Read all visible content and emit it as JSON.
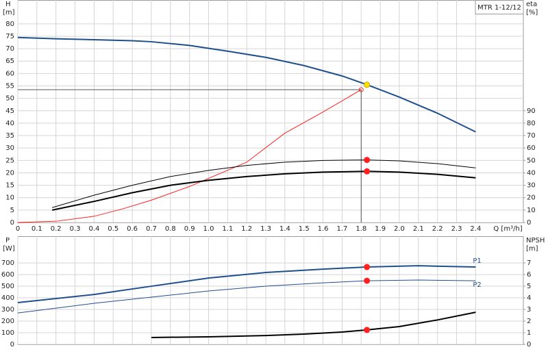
{
  "chart_data": [
    {
      "type": "line",
      "legend_title": "MTR 1-12/12",
      "y_label": "H",
      "y_unit": "[m]",
      "y2_label": "eta",
      "y2_unit": "[%]",
      "x_label": "Q [m³/h]",
      "xlim": [
        0,
        2.65
      ],
      "ylim": [
        0,
        89.6
      ],
      "y2lim": [
        0,
        179.2
      ],
      "grid": true,
      "xticks": [
        0,
        0.1,
        0.2,
        0.3,
        0.4,
        0.5,
        0.6,
        0.7,
        0.8,
        0.9,
        {
          "value": 1,
          "label": "1.0"
        },
        1.1,
        1.2,
        1.3,
        1.4,
        1.5,
        1.6,
        1.7,
        1.8,
        1.9,
        {
          "value": 2,
          "label": "2.0"
        },
        2.1,
        2.2,
        2.3,
        2.4
      ],
      "yticks": [
        0,
        5,
        10,
        15,
        20,
        25,
        30,
        35,
        40,
        45,
        50,
        55,
        60,
        65,
        70,
        75,
        80
      ],
      "y2ticks": [
        0,
        10,
        20,
        30,
        40,
        50,
        60,
        70,
        80,
        90
      ],
      "series": [
        {
          "color": "#1f4e8c",
          "width": 2,
          "x": [
            0,
            0.2,
            0.4,
            0.6,
            0.7,
            0.9,
            1.1,
            1.3,
            1.5,
            1.7,
            1.83,
            2.0,
            2.2,
            2.4
          ],
          "values": [
            74.5,
            74,
            73.6,
            73.2,
            72.8,
            71.3,
            69,
            66.5,
            63.2,
            59,
            55.5,
            50.5,
            44,
            36.5
          ]
        },
        {
          "color": "#ff2020",
          "width": 1,
          "axis": "y2",
          "x": [
            0,
            0.2,
            0.4,
            0.55,
            0.7,
            0.9,
            1.2,
            1.4,
            1.6,
            1.8
          ],
          "values": [
            0,
            1,
            5,
            11,
            18,
            29,
            48.6,
            72,
            89,
            107
          ]
        },
        {
          "color": "#000000",
          "width": 1,
          "axis": "y2",
          "x": [
            0.18,
            0.4,
            0.6,
            0.8,
            1.0,
            1.2,
            1.4,
            1.6,
            1.83,
            2.0,
            2.2,
            2.4
          ],
          "values": [
            12,
            22,
            30,
            37,
            42,
            46,
            48.6,
            50,
            50.4,
            49.6,
            47.4,
            44
          ]
        },
        {
          "color": "#000000",
          "width": 2,
          "axis": "y2",
          "x": [
            0.18,
            0.4,
            0.6,
            0.8,
            1.0,
            1.2,
            1.4,
            1.6,
            1.83,
            2.0,
            2.2,
            2.4
          ],
          "values": [
            10,
            17,
            24,
            30,
            34,
            37,
            39.2,
            40.6,
            41.2,
            40.6,
            38.8,
            36
          ]
        }
      ],
      "duty_lines": {
        "x": 1.8,
        "y": 53.5
      },
      "markers": [
        {
          "x": 1.8,
          "y": 53.5,
          "color": "#ff2020",
          "hollow": true
        },
        {
          "x": 1.83,
          "y": 55.5,
          "color": "#ffe000"
        },
        {
          "x": 1.83,
          "y": 50.4,
          "color": "#ff2020",
          "axis": "y2"
        },
        {
          "x": 1.83,
          "y": 41.2,
          "color": "#ff2020",
          "axis": "y2"
        }
      ]
    },
    {
      "type": "line",
      "y_label": "P",
      "y_unit": "[W]",
      "y2_label": "NPSH",
      "y2_unit": "[m]",
      "xlim": [
        0,
        2.65
      ],
      "ylim": [
        0,
        930
      ],
      "y2lim": [
        0,
        9.3
      ],
      "grid": true,
      "xticks": [
        0,
        0.1,
        0.2,
        0.3,
        0.4,
        0.5,
        0.6,
        0.7,
        0.8,
        0.9,
        1,
        1.1,
        1.2,
        1.3,
        1.4,
        1.5,
        1.6,
        1.7,
        1.8,
        1.9,
        2,
        2.1,
        2.2,
        2.3,
        2.4
      ],
      "yticks": [
        0,
        100,
        200,
        300,
        400,
        500,
        600,
        700
      ],
      "y2ticks": [
        0,
        1,
        2,
        3,
        4,
        5,
        6,
        7
      ],
      "series": [
        {
          "name": "P1",
          "color": "#1f4e8c",
          "width": 2,
          "x": [
            0,
            0.4,
            0.7,
            1.0,
            1.3,
            1.6,
            1.83,
            2.1,
            2.4
          ],
          "values": [
            359,
            429,
            500,
            570,
            618,
            647,
            665,
            676,
            665
          ]
        },
        {
          "name": "P2",
          "color": "#1f4e8c",
          "width": 1,
          "x": [
            0,
            0.4,
            0.7,
            1.0,
            1.3,
            1.6,
            1.83,
            2.1,
            2.4
          ],
          "values": [
            270,
            353,
            406,
            459,
            500,
            529,
            547,
            553,
            547
          ]
        },
        {
          "color": "#000000",
          "width": 2,
          "axis": "y2",
          "x": [
            0.7,
            1.0,
            1.3,
            1.5,
            1.7,
            1.83,
            2.0,
            2.2,
            2.4
          ],
          "values": [
            0.59,
            0.65,
            0.76,
            0.88,
            1.06,
            1.24,
            1.53,
            2.1,
            2.76
          ]
        }
      ],
      "markers": [
        {
          "x": 1.83,
          "y": 665,
          "color": "#ff2020"
        },
        {
          "x": 1.83,
          "y": 547,
          "color": "#ff2020"
        },
        {
          "x": 1.83,
          "y": 1.24,
          "color": "#ff2020",
          "axis": "y2"
        }
      ]
    }
  ]
}
